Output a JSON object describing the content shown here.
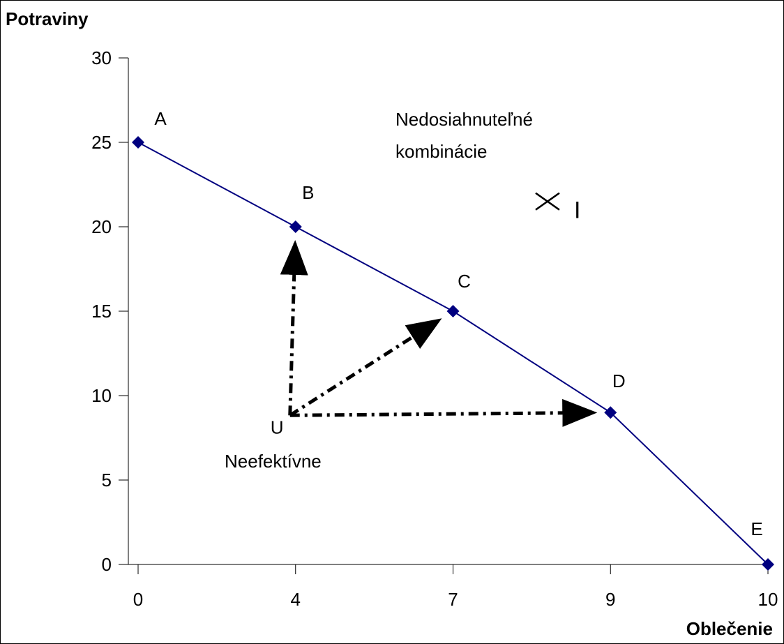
{
  "chart_data": {
    "type": "line",
    "ylabel": "Potraviny",
    "xlabel": "Oblečenie",
    "x_categories": [
      "0",
      "4",
      "7",
      "9",
      "10"
    ],
    "y_ticks": [
      "0",
      "5",
      "10",
      "15",
      "20",
      "25",
      "30"
    ],
    "ylim": [
      0,
      30
    ],
    "grid": false,
    "legend": "none",
    "series": [
      {
        "points": [
          {
            "label": "A",
            "x": "0",
            "y": 25
          },
          {
            "label": "B",
            "x": "4",
            "y": 20
          },
          {
            "label": "C",
            "x": "7",
            "y": 15
          },
          {
            "label": "D",
            "x": "9",
            "y": 9
          },
          {
            "label": "E",
            "x": "10",
            "y": 0
          }
        ]
      }
    ],
    "annotations": {
      "unattainable": [
        "Nedosiahnuteľné",
        "kombinácie"
      ],
      "point_I": {
        "label": "I",
        "x": 8.2,
        "y": 21.5
      },
      "point_U": {
        "label": "U",
        "x": 4,
        "y": 8.5
      },
      "inefficient": "Neefektívne",
      "arrows_from_U_to": [
        "B",
        "C",
        "D"
      ]
    },
    "colors": {
      "line": "#000080",
      "marker": "#000080",
      "arrow": "#000000"
    }
  }
}
